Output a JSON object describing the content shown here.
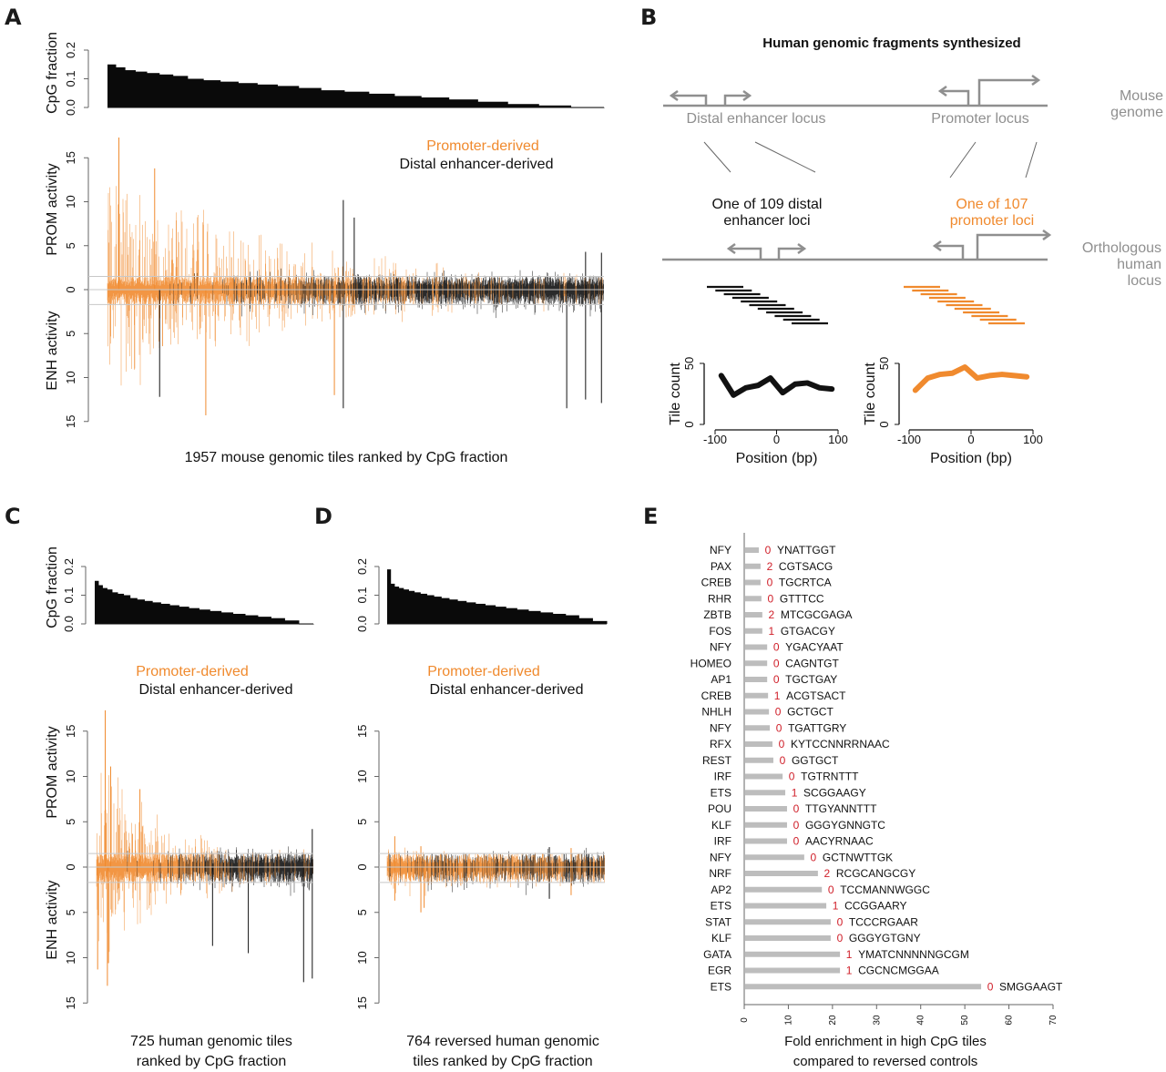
{
  "colors": {
    "promoter": "#f08a2e",
    "enhancer": "#111111",
    "grey": "#8f8f8f",
    "bar_grey": "#bdbdbd",
    "count_red": "#d0202a"
  },
  "legend": {
    "promoter": "Promoter-derived",
    "enhancer": "Distal enhancer-derived"
  },
  "chart_data": [
    {
      "id": "A",
      "panel_label": "A",
      "type": "bar",
      "cpg": {
        "ylabel": "CpG fraction",
        "yticks": [
          "0.0",
          "0.1",
          "0.2"
        ],
        "ylim": [
          0,
          0.2
        ],
        "n_tiles": 1957,
        "step_values": [
          0.15,
          0.14,
          0.13,
          0.125,
          0.12,
          0.115,
          0.11,
          0.1,
          0.095,
          0.09,
          0.085,
          0.08,
          0.075,
          0.068,
          0.06,
          0.055,
          0.048,
          0.04,
          0.035,
          0.028,
          0.02,
          0.012,
          0.007,
          0.0
        ]
      },
      "activity": {
        "ylabel_top": "PROM activity",
        "ylabel_bottom": "ENH activity",
        "yticks_top": [
          "0",
          "5",
          "10",
          "15"
        ],
        "yticks_bottom": [
          "5",
          "10",
          "15"
        ],
        "ylim": [
          -15,
          15
        ],
        "threshold_lines": [
          1.5,
          -1.7
        ],
        "n_tiles": 1957,
        "promoter_fraction_by_rank": [
          1.0,
          0.95,
          0.85,
          0.6,
          0.35,
          0.2,
          0.15,
          0.12
        ],
        "peak_prom_start": 11,
        "peak_enh_start": 9,
        "notable_spikes": [
          {
            "rank_frac": 0.023,
            "prom": 17.3,
            "enh": 0,
            "series": "promoter"
          },
          {
            "rank_frac": 0.095,
            "prom": 13.8,
            "enh": 0,
            "series": "promoter"
          },
          {
            "rank_frac": 0.198,
            "prom": 0,
            "enh": 14.3,
            "series": "promoter"
          },
          {
            "rank_frac": 0.475,
            "prom": 10.2,
            "enh": 13.5,
            "series": "enhancer"
          },
          {
            "rank_frac": 0.497,
            "prom": 8.2,
            "enh": 0,
            "series": "enhancer"
          },
          {
            "rank_frac": 0.457,
            "prom": 0,
            "enh": 12.0,
            "series": "promoter"
          },
          {
            "rank_frac": 0.925,
            "prom": 0,
            "enh": 13.5,
            "series": "enhancer"
          },
          {
            "rank_frac": 0.963,
            "prom": 4.3,
            "enh": 12.5,
            "series": "enhancer"
          },
          {
            "rank_frac": 0.995,
            "prom": 4.2,
            "enh": 12.9,
            "series": "enhancer"
          },
          {
            "rank_frac": 0.105,
            "prom": 0,
            "enh": 12.2,
            "series": "enhancer"
          }
        ]
      },
      "legend_position": "top-right",
      "caption": "1957 mouse genomic tiles ranked by CpG fraction"
    },
    {
      "id": "C",
      "panel_label": "C",
      "type": "bar",
      "cpg": {
        "ylabel": "CpG fraction",
        "yticks": [
          "0.0",
          "0.1",
          "0.2"
        ],
        "ylim": [
          0,
          0.2
        ],
        "n_tiles": 725,
        "step_values": [
          0.15,
          0.135,
          0.125,
          0.12,
          0.11,
          0.105,
          0.1,
          0.09,
          0.085,
          0.08,
          0.075,
          0.07,
          0.065,
          0.06,
          0.055,
          0.05,
          0.045,
          0.04,
          0.035,
          0.03,
          0.025,
          0.02,
          0.012,
          0.0
        ]
      },
      "activity": {
        "ylabel_top": "PROM activity",
        "ylabel_bottom": "ENH activity",
        "yticks_top": [
          "0",
          "5",
          "10",
          "15"
        ],
        "yticks_bottom": [
          "5",
          "10",
          "15"
        ],
        "ylim": [
          -15,
          15
        ],
        "threshold_lines": [
          1.5,
          -1.7
        ],
        "n_tiles": 725,
        "promoter_fraction_by_rank": [
          1.0,
          0.95,
          0.9,
          0.55,
          0.3,
          0.2,
          0.15,
          0.12
        ],
        "peak_prom_start": 9,
        "peak_enh_start": 8,
        "notable_spikes": [
          {
            "rank_frac": 0.04,
            "prom": 17.3,
            "enh": 0,
            "series": "promoter"
          },
          {
            "rank_frac": 0.065,
            "prom": 11.1,
            "enh": 0,
            "series": "promoter"
          },
          {
            "rank_frac": 0.2,
            "prom": 8.6,
            "enh": 0,
            "series": "promoter"
          },
          {
            "rank_frac": 0.05,
            "prom": 0,
            "enh": 13.1,
            "series": "promoter"
          },
          {
            "rank_frac": 0.005,
            "prom": 0,
            "enh": 11.3,
            "series": "promoter"
          },
          {
            "rank_frac": 0.055,
            "prom": 0,
            "enh": 10.6,
            "series": "promoter"
          },
          {
            "rank_frac": 0.535,
            "prom": 0,
            "enh": 8.7,
            "series": "enhancer"
          },
          {
            "rank_frac": 0.7,
            "prom": 0,
            "enh": 9.5,
            "series": "enhancer"
          },
          {
            "rank_frac": 0.955,
            "prom": 0,
            "enh": 12.7,
            "series": "enhancer"
          },
          {
            "rank_frac": 0.995,
            "prom": 4.2,
            "enh": 12.3,
            "series": "enhancer"
          }
        ]
      },
      "legend_position": "top-center",
      "caption": [
        "725 human genomic tiles",
        "ranked by CpG fraction"
      ]
    },
    {
      "id": "D",
      "panel_label": "D",
      "type": "bar",
      "cpg": {
        "ylabel": "",
        "yticks": [
          "0.0",
          "0.1",
          "0.2"
        ],
        "ylim": [
          0,
          0.2
        ],
        "n_tiles": 764,
        "step_values": [
          0.19,
          0.14,
          0.13,
          0.125,
          0.12,
          0.115,
          0.11,
          0.105,
          0.1,
          0.095,
          0.09,
          0.085,
          0.08,
          0.075,
          0.07,
          0.065,
          0.06,
          0.055,
          0.05,
          0.045,
          0.04,
          0.035,
          0.03,
          0.02,
          0.01
        ]
      },
      "activity": {
        "ylabel_top": "",
        "ylabel_bottom": "",
        "yticks_top": [
          "0",
          "5",
          "10",
          "15"
        ],
        "yticks_bottom": [
          "5",
          "10",
          "15"
        ],
        "ylim": [
          -15,
          15
        ],
        "threshold_lines": [
          1.5,
          -1.7
        ],
        "n_tiles": 764,
        "promoter_fraction_by_rank": [
          0.95,
          0.8,
          0.75,
          0.7,
          0.65,
          0.55,
          0.45,
          0.4
        ],
        "peak_prom_start": 2.2,
        "peak_enh_start": 2.6,
        "notable_spikes": [
          {
            "rank_frac": 0.035,
            "prom": 3.4,
            "enh": 3.7,
            "series": "promoter"
          },
          {
            "rank_frac": 0.155,
            "prom": 2.3,
            "enh": 5.0,
            "series": "promoter"
          },
          {
            "rank_frac": 0.17,
            "prom": 0,
            "enh": 4.5,
            "series": "promoter"
          },
          {
            "rank_frac": 0.745,
            "prom": 2.2,
            "enh": 3.5,
            "series": "enhancer"
          },
          {
            "rank_frac": 0.845,
            "prom": 2.1,
            "enh": 3.1,
            "series": "promoter"
          }
        ]
      },
      "legend_position": "top-center",
      "caption": [
        "764 reversed human genomic",
        "tiles ranked by CpG fraction"
      ]
    },
    {
      "id": "B-enh",
      "type": "line",
      "xlabel": "Position (bp)",
      "ylabel": "Tile count",
      "xticks": [
        "-100",
        "0",
        "100"
      ],
      "yticks": [
        "0",
        "50"
      ],
      "xlim": [
        -100,
        100
      ],
      "ylim": [
        0,
        50
      ],
      "series": [
        {
          "name": "Distal enhancer tiles",
          "color": "#111111",
          "x": [
            -90,
            -70,
            -50,
            -30,
            -10,
            10,
            30,
            50,
            70,
            90
          ],
          "y": [
            40,
            24,
            30,
            32,
            38,
            26,
            33,
            34,
            30,
            29
          ]
        }
      ]
    },
    {
      "id": "B-prom",
      "type": "line",
      "xlabel": "Position (bp)",
      "ylabel": "Tile count",
      "xticks": [
        "-100",
        "0",
        "100"
      ],
      "yticks": [
        "0",
        "50"
      ],
      "xlim": [
        -100,
        100
      ],
      "ylim": [
        0,
        50
      ],
      "series": [
        {
          "name": "Promoter tiles",
          "color": "#f08a2e",
          "x": [
            -90,
            -70,
            -50,
            -30,
            -10,
            10,
            30,
            50,
            70,
            90
          ],
          "y": [
            28,
            38,
            41,
            42,
            47,
            38,
            40,
            41,
            40,
            39
          ]
        }
      ]
    },
    {
      "id": "E",
      "panel_label": "E",
      "type": "bar",
      "orientation": "horizontal",
      "title": "",
      "xlabel": [
        "Fold enrichment in high CpG tiles",
        "compared to reversed controls"
      ],
      "xticks": [
        "0",
        "10",
        "20",
        "30",
        "40",
        "50",
        "60",
        "70"
      ],
      "xlim": [
        0,
        70
      ],
      "grid": false,
      "rows": [
        {
          "family": "NFY",
          "value": 3.3,
          "count": "0",
          "motif": "YNATTGGT"
        },
        {
          "family": "PAX",
          "value": 3.7,
          "count": "2",
          "motif": "CGTSACG"
        },
        {
          "family": "CREB",
          "value": 3.7,
          "count": "0",
          "motif": "TGCRTCA"
        },
        {
          "family": "RHR",
          "value": 3.9,
          "count": "0",
          "motif": "GTTTCC"
        },
        {
          "family": "ZBTB",
          "value": 4.1,
          "count": "2",
          "motif": "MTCGCGAGA"
        },
        {
          "family": "FOS",
          "value": 4.1,
          "count": "1",
          "motif": "GTGACGY"
        },
        {
          "family": "NFY",
          "value": 5.2,
          "count": "0",
          "motif": "YGACYAAT"
        },
        {
          "family": "HOMEO",
          "value": 5.2,
          "count": "0",
          "motif": "CAGNTGT"
        },
        {
          "family": "AP1",
          "value": 5.2,
          "count": "0",
          "motif": "TGCTGAY"
        },
        {
          "family": "CREB",
          "value": 5.4,
          "count": "1",
          "motif": "ACGTSACT"
        },
        {
          "family": "NHLH",
          "value": 5.6,
          "count": "0",
          "motif": "GCTGCT"
        },
        {
          "family": "NFY",
          "value": 5.8,
          "count": "0",
          "motif": "TGATTGRY"
        },
        {
          "family": "RFX",
          "value": 6.4,
          "count": "0",
          "motif": "KYTCCNNRRNAAC"
        },
        {
          "family": "REST",
          "value": 6.6,
          "count": "0",
          "motif": "GGTGCT"
        },
        {
          "family": "IRF",
          "value": 8.7,
          "count": "0",
          "motif": "TGTRNTTT"
        },
        {
          "family": "ETS",
          "value": 9.3,
          "count": "1",
          "motif": "SCGGAAGY"
        },
        {
          "family": "POU",
          "value": 9.7,
          "count": "0",
          "motif": "TTGYANNTTT"
        },
        {
          "family": "KLF",
          "value": 9.7,
          "count": "0",
          "motif": "GGGYGNNGTC"
        },
        {
          "family": "IRF",
          "value": 9.7,
          "count": "0",
          "motif": "AACYRNAAC"
        },
        {
          "family": "NFY",
          "value": 13.6,
          "count": "0",
          "motif": "GCTNWTTGK"
        },
        {
          "family": "NRF",
          "value": 16.7,
          "count": "2",
          "motif": "RCGCANGCGY"
        },
        {
          "family": "AP2",
          "value": 17.6,
          "count": "0",
          "motif": "TCCMANNWGGC"
        },
        {
          "family": "ETS",
          "value": 18.6,
          "count": "1",
          "motif": "CCGGAARY"
        },
        {
          "family": "STAT",
          "value": 19.6,
          "count": "0",
          "motif": "TCCCRGAAR"
        },
        {
          "family": "KLF",
          "value": 19.6,
          "count": "0",
          "motif": "GGGYGTGNY"
        },
        {
          "family": "GATA",
          "value": 21.7,
          "count": "1",
          "motif": "YMATCNNNNNGCGM"
        },
        {
          "family": "EGR",
          "value": 21.7,
          "count": "1",
          "motif": "CGCNCMGGAA"
        },
        {
          "family": "ETS",
          "value": 53.7,
          "count": "0",
          "motif": "SMGGAAGT"
        }
      ]
    }
  ],
  "panel_b": {
    "label": "B",
    "title": "Human genomic fragments synthesized",
    "mouse_genome_label": [
      "Mouse",
      "genome"
    ],
    "distal_locus_label": "Distal enhancer locus",
    "promoter_locus_label": "Promoter locus",
    "distal_human_label": [
      "One of 109 distal",
      "enhancer loci"
    ],
    "promoter_human_label": [
      "One of 107",
      "promoter loci"
    ],
    "human_locus_label": [
      "Orthologous",
      "human",
      "locus"
    ],
    "tiles_per_locus": 11
  }
}
